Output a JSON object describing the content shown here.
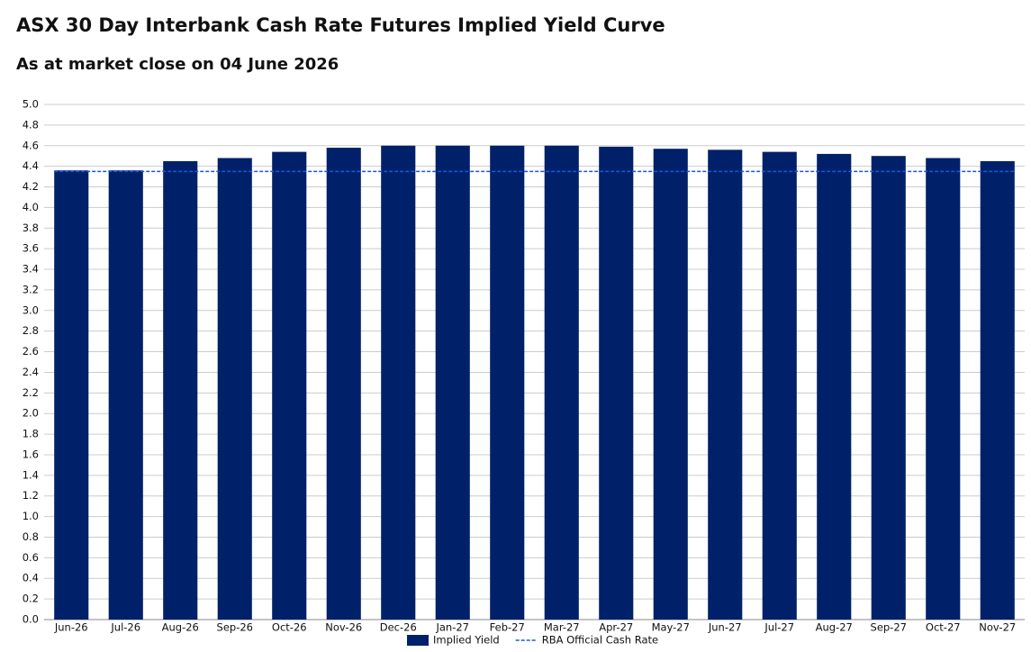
{
  "chart_data": {
    "type": "bar",
    "title": "ASX 30 Day Interbank Cash Rate Futures Implied Yield Curve",
    "subtitle": "As at market close on 04 June 2026",
    "categories": [
      "Jun-26",
      "Jul-26",
      "Aug-26",
      "Sep-26",
      "Oct-26",
      "Nov-26",
      "Dec-26",
      "Jan-27",
      "Feb-27",
      "Mar-27",
      "Apr-27",
      "May-27",
      "Jun-27",
      "Jul-27",
      "Aug-27",
      "Sep-27",
      "Oct-27",
      "Nov-27"
    ],
    "series": [
      {
        "name": "Implied Yield",
        "color": "#002169",
        "values": [
          4.36,
          4.36,
          4.45,
          4.48,
          4.54,
          4.58,
          4.6,
          4.6,
          4.6,
          4.6,
          4.59,
          4.57,
          4.56,
          4.54,
          4.52,
          4.5,
          4.48,
          4.45
        ]
      }
    ],
    "reference_lines": [
      {
        "name": "RBA Official Cash Rate",
        "color": "#1a56db",
        "value": 4.35,
        "style": "dashed"
      }
    ],
    "ylim": [
      0,
      5
    ],
    "yticks": [
      {
        "value": 0,
        "label": "0.0"
      },
      0.2,
      0.4,
      0.6,
      0.8,
      {
        "value": 1,
        "label": "1.0"
      },
      1.2,
      1.4,
      1.6,
      1.8,
      {
        "value": 2,
        "label": "2.0"
      },
      2.2,
      2.4,
      2.6,
      2.8,
      {
        "value": 3,
        "label": "3.0"
      },
      3.2,
      3.4,
      3.6,
      3.8,
      {
        "value": 4,
        "label": "4.0"
      },
      4.2,
      4.4,
      4.6,
      4.8,
      {
        "value": 5,
        "label": "5.0"
      }
    ],
    "grid": true
  }
}
